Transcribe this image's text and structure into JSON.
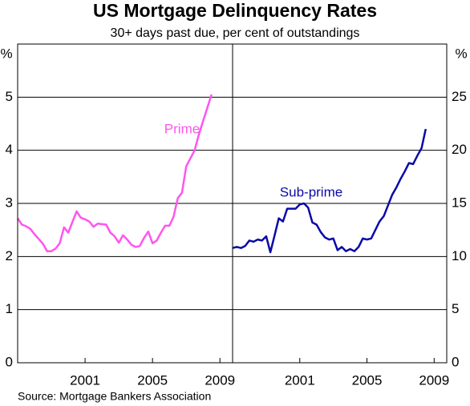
{
  "title": "US Mortgage Delinquency Rates",
  "subtitle": "30+ days past due, per cent of outstandings",
  "source": "Source: Mortgage Bankers Association",
  "chart_data": [
    {
      "type": "line",
      "ylabel": "%",
      "ylim": [
        0,
        6
      ],
      "yticks": [
        0,
        1,
        2,
        3,
        4,
        5
      ],
      "xlim": [
        1997,
        2009.75
      ],
      "xticks": [
        2001,
        2005,
        2009
      ],
      "grid": true,
      "x": [
        1997,
        1997.25,
        1997.5,
        1997.75,
        1998,
        1998.25,
        1998.5,
        1998.75,
        1999,
        1999.25,
        1999.5,
        1999.75,
        2000,
        2000.25,
        2000.5,
        2000.75,
        2001,
        2001.25,
        2001.5,
        2001.75,
        2002,
        2002.25,
        2002.5,
        2002.75,
        2003,
        2003.25,
        2003.5,
        2003.75,
        2004,
        2004.25,
        2004.5,
        2004.75,
        2005,
        2005.25,
        2005.5,
        2005.75,
        2006,
        2006.25,
        2006.5,
        2006.75,
        2007,
        2007.25,
        2007.5,
        2007.75,
        2008,
        2008.25,
        2008.5
      ],
      "series": [
        {
          "name": "Prime",
          "color": "#ff55ee",
          "values": [
            2.72,
            2.6,
            2.57,
            2.52,
            2.42,
            2.33,
            2.24,
            2.1,
            2.1,
            2.15,
            2.25,
            2.55,
            2.45,
            2.65,
            2.85,
            2.73,
            2.7,
            2.66,
            2.56,
            2.62,
            2.61,
            2.6,
            2.45,
            2.38,
            2.26,
            2.4,
            2.32,
            2.22,
            2.18,
            2.2,
            2.35,
            2.47,
            2.25,
            2.3,
            2.45,
            2.58,
            2.58,
            2.75,
            3.1,
            3.2,
            3.7,
            3.85,
            4.0,
            4.3,
            4.55,
            4.8,
            5.05
          ]
        }
      ]
    },
    {
      "type": "line",
      "ylabel": "%",
      "ylim": [
        0,
        30
      ],
      "yticks": [
        0,
        5,
        10,
        15,
        20,
        25
      ],
      "xlim": [
        1997,
        2009.75
      ],
      "xticks": [
        2001,
        2005,
        2009
      ],
      "grid": true,
      "x": [
        1997,
        1997.25,
        1997.5,
        1997.75,
        1998,
        1998.25,
        1998.5,
        1998.75,
        1999,
        1999.25,
        1999.5,
        1999.75,
        2000,
        2000.25,
        2000.5,
        2000.75,
        2001,
        2001.25,
        2001.5,
        2001.75,
        2002,
        2002.25,
        2002.5,
        2002.75,
        2003,
        2003.25,
        2003.5,
        2003.75,
        2004,
        2004.25,
        2004.5,
        2004.75,
        2005,
        2005.25,
        2005.5,
        2005.75,
        2006,
        2006.25,
        2006.5,
        2006.75,
        2007,
        2007.25,
        2007.5,
        2007.75,
        2008,
        2008.25,
        2008.5
      ],
      "series": [
        {
          "name": "Sub-prime",
          "color": "#0a0aa8",
          "values": [
            10.8,
            10.9,
            10.8,
            11.0,
            11.5,
            11.4,
            11.6,
            11.5,
            11.9,
            10.4,
            12.0,
            13.6,
            13.3,
            14.5,
            14.5,
            14.5,
            14.9,
            15.0,
            14.6,
            13.2,
            13.0,
            12.3,
            11.8,
            11.6,
            11.7,
            10.6,
            10.9,
            10.5,
            10.7,
            10.5,
            10.9,
            11.7,
            11.6,
            11.7,
            12.5,
            13.3,
            13.8,
            14.8,
            15.8,
            16.5,
            17.3,
            18.0,
            18.8,
            18.7,
            19.5,
            20.2,
            22.0
          ]
        }
      ]
    }
  ]
}
